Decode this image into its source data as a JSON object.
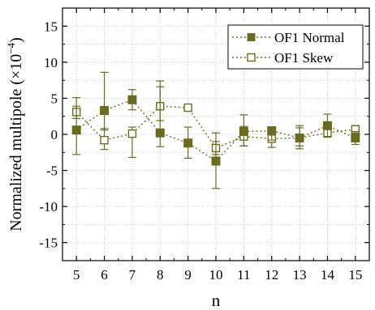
{
  "chart_data": {
    "type": "scatter",
    "xlabel": "n",
    "ylabel_main": "Normalized multipole (×10",
    "ylabel_exp": "−4",
    "ylabel_close": ")",
    "x": [
      5,
      6,
      7,
      8,
      9,
      10,
      11,
      12,
      13,
      14,
      15
    ],
    "x_ticks": [
      "5",
      "6",
      "7",
      "8",
      "9",
      "10",
      "11",
      "12",
      "13",
      "14",
      "15"
    ],
    "xlim": [
      4.5,
      15.5
    ],
    "ylim": [
      -17.5,
      17.5
    ],
    "y_ticks": [
      -15,
      -10,
      -5,
      0,
      5,
      10,
      15
    ],
    "y_tick_labels": [
      "-15",
      "-10",
      "-5",
      "0",
      "5",
      "10",
      "15"
    ],
    "grid": true,
    "legend_position": "top-right",
    "colors": {
      "series": "#6b6b1e",
      "grid": "#c8c8c8"
    },
    "series": [
      {
        "name": "OF1 Normal",
        "marker": "filled-square",
        "values": [
          0.6,
          3.3,
          4.8,
          0.2,
          -1.2,
          -3.7,
          0.4,
          0.5,
          -0.5,
          1.2,
          -0.5
        ],
        "err_low": [
          3.4,
          2.7,
          1.4,
          1.9,
          2.1,
          3.8,
          2.0,
          1.3,
          1.5,
          1.6,
          0.9
        ],
        "err_high": [
          3.3,
          5.3,
          1.4,
          7.2,
          2.2,
          3.9,
          2.3,
          0.4,
          1.7,
          1.6,
          0.9
        ]
      },
      {
        "name": "OF1 Skew",
        "marker": "open-square",
        "values": [
          3.1,
          -0.8,
          0.1,
          3.9,
          3.7,
          -1.9,
          -0.3,
          -0.6,
          -0.5,
          0.2,
          0.7
        ],
        "err_low": [
          0.9,
          1.3,
          3.3,
          2.0,
          0.3,
          0.9,
          1.3,
          1.2,
          1.1,
          0.5,
          0.6
        ],
        "err_high": [
          2.0,
          1.6,
          0.9,
          2.7,
          0.3,
          0.9,
          1.4,
          1.1,
          1.4,
          0.5,
          0.5
        ]
      }
    ]
  }
}
